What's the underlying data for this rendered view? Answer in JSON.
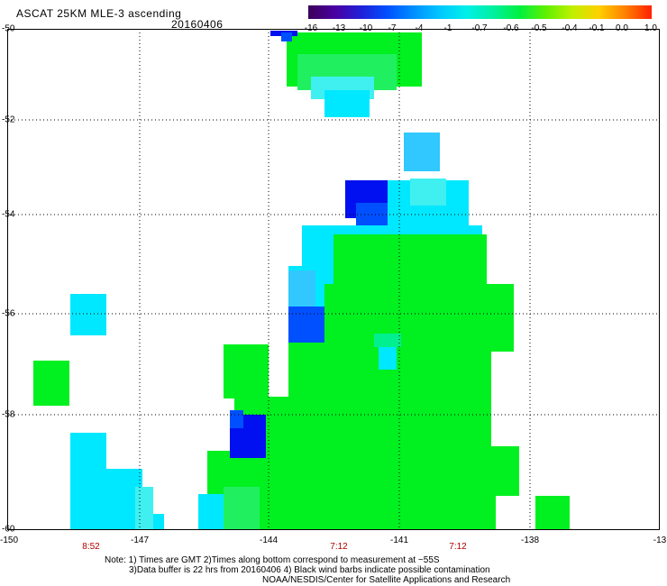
{
  "header": {
    "title": "ASCAT 25KM MLE-3 ascending",
    "date": "20160406"
  },
  "colorbar": {
    "labels": [
      "-16",
      "-13",
      "-10",
      "-7",
      "-4",
      "-1",
      "-0.7",
      "-0.6",
      "-0.5",
      "-0.4",
      "-0.1",
      "0.0",
      "1.0"
    ],
    "colors": [
      "#3a0058",
      "#4a00a0",
      "#2020d8",
      "#0050ff",
      "#0090ff",
      "#00c8ff",
      "#00f0e8",
      "#00f0a0",
      "#00f040",
      "#60f000",
      "#c0f000",
      "#ffd000",
      "#ff8000",
      "#ff2000"
    ]
  },
  "axes": {
    "lat_labels": [
      "-50",
      "-52",
      "-54",
      "-56",
      "-58",
      "-60"
    ],
    "lon_labels": [
      "-150",
      "-147",
      "-144",
      "-141",
      "-138",
      "-13"
    ],
    "time_labels": [
      "8:52",
      "7:12",
      "7:12"
    ]
  },
  "notes": {
    "line1": "Note: 1) Times are GMT 2)Times along bottom correspond to measurement at ~55S",
    "line2": "3)Data buffer is 22 hrs from 20160406 4) Black wind barbs indicate possible contamination",
    "line3": "NOAA/NESDIS/Center for Satellite Applications and Research"
  },
  "map_colors": {
    "green": "#00f020",
    "green_light": "#20f060",
    "cyan": "#00e8ff",
    "cyan_light": "#40f0f0",
    "sky": "#30c8ff",
    "blue": "#0050ff",
    "dark_blue": "#0010f0",
    "mint": "#00f090"
  }
}
